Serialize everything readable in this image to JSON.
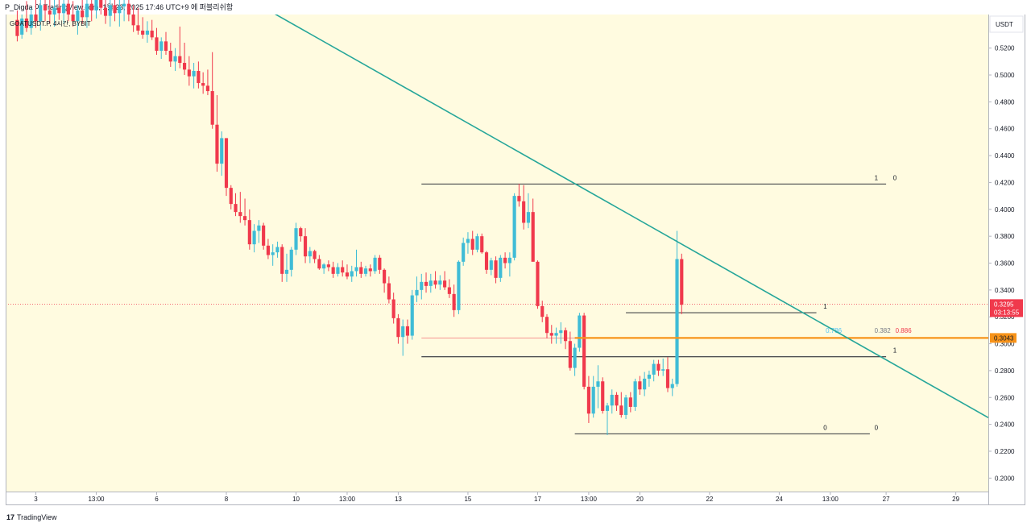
{
  "header": {
    "caption": "P_Digda 이 TradingView.com, 1월 23, 2025 17:46 UTC+9 에 퍼블리쉬함"
  },
  "footer": {
    "logo_mark": "17",
    "brand": "TradingView"
  },
  "chart_data": {
    "type": "candlestick",
    "symbol_line": "GOATUSDT.P, 4시간, BYBIT",
    "currency": "USDT",
    "y_ticks": [
      "0.2000",
      "0.2200",
      "0.2400",
      "0.2600",
      "0.2800",
      "0.3000",
      "0.3200",
      "0.3400",
      "0.3600",
      "0.3800",
      "0.4000",
      "0.4200",
      "0.4400",
      "0.4600",
      "0.4800",
      "0.5000",
      "0.5200"
    ],
    "ylim": [
      0.19,
      0.545
    ],
    "x_ticks": [
      {
        "label": "3",
        "t": 4
      },
      {
        "label": "13:00",
        "t": 17
      },
      {
        "label": "6",
        "t": 30
      },
      {
        "label": "8",
        "t": 45
      },
      {
        "label": "10",
        "t": 60
      },
      {
        "label": "13:00",
        "t": 71
      },
      {
        "label": "13",
        "t": 82
      },
      {
        "label": "15",
        "t": 97
      },
      {
        "label": "17",
        "t": 112
      },
      {
        "label": "13:00",
        "t": 123
      },
      {
        "label": "20",
        "t": 134
      },
      {
        "label": "22",
        "t": 149
      },
      {
        "label": "24",
        "t": 164
      },
      {
        "label": "13:00",
        "t": 175
      },
      {
        "label": "27",
        "t": 187
      },
      {
        "label": "29",
        "t": 202
      }
    ],
    "xlim": [
      -2.5,
      209
    ],
    "last_price": "0.3295",
    "countdown": "03:13:55",
    "marked_price": "0.3043",
    "colors": {
      "up": "#3fbcd6",
      "down": "#f0394c",
      "trendline": "#26a69a",
      "marked": "#f7931a",
      "price_tag": "#f0394c",
      "background": "#fffbe0"
    },
    "trendline": {
      "from": {
        "t": 48,
        "price": 0.56
      },
      "to": {
        "t": 209,
        "price": 0.245
      }
    },
    "horizontal_levels": [
      {
        "t0": 87,
        "t1": 187,
        "price": 0.4189,
        "labels": [
          {
            "text": "1",
            "t": 184.5,
            "color": "#131722"
          },
          {
            "text": "0",
            "t": 188.5,
            "color": "#131722"
          }
        ]
      },
      {
        "t0": 87,
        "t1": 187,
        "price": 0.2903,
        "labels": [
          {
            "text": "1",
            "t": 188.5,
            "color": "#131722"
          }
        ]
      },
      {
        "t0": 131,
        "t1": 172,
        "price": 0.3231,
        "labels": [
          {
            "text": "1",
            "t": 173.5,
            "color": "#131722"
          }
        ]
      },
      {
        "t0": 120,
        "t1": 183.5,
        "price": 0.233,
        "labels": [
          {
            "text": "0",
            "t": 173.5,
            "color": "#131722"
          },
          {
            "text": "0",
            "t": 184.5,
            "color": "#131722"
          }
        ]
      }
    ],
    "fib_labels": [
      {
        "text": "0.786",
        "t": 174,
        "price": 0.31,
        "color": "#4fc3f7"
      },
      {
        "text": "0.382",
        "t": 184.5,
        "price": 0.31,
        "color": "#787b86"
      },
      {
        "text": "0.886",
        "t": 189,
        "price": 0.31,
        "color": "#f0394c"
      }
    ],
    "marked_line": {
      "t0": 120,
      "price": 0.3043
    },
    "marked_thin_line": {
      "t0": 87,
      "t1": 130,
      "price": 0.3043
    },
    "candles": [
      [
        0.541,
        0.548,
        0.525,
        0.529
      ],
      [
        0.53,
        0.545,
        0.527,
        0.542
      ],
      [
        0.542,
        0.555,
        0.532,
        0.535
      ],
      [
        0.535,
        0.55,
        0.53,
        0.545
      ],
      [
        0.545,
        0.556,
        0.535,
        0.54
      ],
      [
        0.54,
        0.558,
        0.533,
        0.552
      ],
      [
        0.552,
        0.56,
        0.54,
        0.548
      ],
      [
        0.548,
        0.557,
        0.538,
        0.545
      ],
      [
        0.545,
        0.556,
        0.536,
        0.55
      ],
      [
        0.55,
        0.562,
        0.541,
        0.546
      ],
      [
        0.546,
        0.56,
        0.538,
        0.553
      ],
      [
        0.553,
        0.56,
        0.54,
        0.545
      ],
      [
        0.545,
        0.555,
        0.536,
        0.54
      ],
      [
        0.54,
        0.552,
        0.53,
        0.548
      ],
      [
        0.548,
        0.558,
        0.538,
        0.543
      ],
      [
        0.543,
        0.556,
        0.535,
        0.553
      ],
      [
        0.553,
        0.561,
        0.54,
        0.548
      ],
      [
        0.548,
        0.562,
        0.542,
        0.556
      ],
      [
        0.556,
        0.565,
        0.545,
        0.55
      ],
      [
        0.55,
        0.56,
        0.538,
        0.544
      ],
      [
        0.544,
        0.558,
        0.536,
        0.552
      ],
      [
        0.552,
        0.562,
        0.54,
        0.546
      ],
      [
        0.546,
        0.556,
        0.536,
        0.551
      ],
      [
        0.551,
        0.56,
        0.54,
        0.553
      ],
      [
        0.553,
        0.56,
        0.54,
        0.545
      ],
      [
        0.545,
        0.552,
        0.532,
        0.537
      ],
      [
        0.537,
        0.55,
        0.53,
        0.533
      ],
      [
        0.533,
        0.543,
        0.527,
        0.53
      ],
      [
        0.53,
        0.54,
        0.524,
        0.533
      ],
      [
        0.533,
        0.541,
        0.526,
        0.528
      ],
      [
        0.528,
        0.535,
        0.515,
        0.518
      ],
      [
        0.518,
        0.528,
        0.512,
        0.525
      ],
      [
        0.525,
        0.532,
        0.515,
        0.518
      ],
      [
        0.518,
        0.524,
        0.506,
        0.51
      ],
      [
        0.51,
        0.52,
        0.503,
        0.514
      ],
      [
        0.514,
        0.536,
        0.505,
        0.509
      ],
      [
        0.509,
        0.524,
        0.5,
        0.504
      ],
      [
        0.504,
        0.514,
        0.492,
        0.499
      ],
      [
        0.499,
        0.509,
        0.49,
        0.503
      ],
      [
        0.503,
        0.51,
        0.49,
        0.494
      ],
      [
        0.494,
        0.502,
        0.486,
        0.492
      ],
      [
        0.492,
        0.504,
        0.485,
        0.488
      ],
      [
        0.488,
        0.517,
        0.46,
        0.463
      ],
      [
        0.463,
        0.485,
        0.428,
        0.434
      ],
      [
        0.434,
        0.458,
        0.425,
        0.453
      ],
      [
        0.453,
        0.453,
        0.41,
        0.416
      ],
      [
        0.416,
        0.418,
        0.4,
        0.404
      ],
      [
        0.404,
        0.412,
        0.395,
        0.398
      ],
      [
        0.398,
        0.413,
        0.39,
        0.395
      ],
      [
        0.395,
        0.408,
        0.388,
        0.392
      ],
      [
        0.392,
        0.4,
        0.37,
        0.374
      ],
      [
        0.374,
        0.389,
        0.368,
        0.384
      ],
      [
        0.384,
        0.392,
        0.375,
        0.388
      ],
      [
        0.388,
        0.39,
        0.37,
        0.373
      ],
      [
        0.373,
        0.378,
        0.363,
        0.366
      ],
      [
        0.366,
        0.374,
        0.358,
        0.368
      ],
      [
        0.368,
        0.376,
        0.364,
        0.372
      ],
      [
        0.372,
        0.374,
        0.346,
        0.352
      ],
      [
        0.352,
        0.367,
        0.346,
        0.355
      ],
      [
        0.355,
        0.372,
        0.35,
        0.37
      ],
      [
        0.37,
        0.39,
        0.366,
        0.386
      ],
      [
        0.386,
        0.387,
        0.376,
        0.38
      ],
      [
        0.38,
        0.386,
        0.36,
        0.365
      ],
      [
        0.365,
        0.372,
        0.36,
        0.369
      ],
      [
        0.369,
        0.37,
        0.36,
        0.363
      ],
      [
        0.363,
        0.366,
        0.355,
        0.356
      ],
      [
        0.356,
        0.36,
        0.352,
        0.359
      ],
      [
        0.359,
        0.362,
        0.354,
        0.357
      ],
      [
        0.357,
        0.361,
        0.349,
        0.352
      ],
      [
        0.352,
        0.36,
        0.35,
        0.357
      ],
      [
        0.357,
        0.362,
        0.35,
        0.353
      ],
      [
        0.353,
        0.359,
        0.348,
        0.35
      ],
      [
        0.35,
        0.358,
        0.346,
        0.354
      ],
      [
        0.354,
        0.37,
        0.35,
        0.357
      ],
      [
        0.357,
        0.361,
        0.349,
        0.352
      ],
      [
        0.352,
        0.358,
        0.35,
        0.356
      ],
      [
        0.356,
        0.359,
        0.35,
        0.354
      ],
      [
        0.354,
        0.366,
        0.352,
        0.364
      ],
      [
        0.364,
        0.366,
        0.352,
        0.355
      ],
      [
        0.355,
        0.356,
        0.338,
        0.345
      ],
      [
        0.345,
        0.35,
        0.33,
        0.333
      ],
      [
        0.333,
        0.338,
        0.315,
        0.319
      ],
      [
        0.319,
        0.322,
        0.3,
        0.305
      ],
      [
        0.305,
        0.318,
        0.291,
        0.313
      ],
      [
        0.313,
        0.318,
        0.3,
        0.306
      ],
      [
        0.306,
        0.34,
        0.303,
        0.336
      ],
      [
        0.336,
        0.35,
        0.331,
        0.34
      ],
      [
        0.34,
        0.352,
        0.333,
        0.346
      ],
      [
        0.346,
        0.353,
        0.338,
        0.343
      ],
      [
        0.343,
        0.352,
        0.338,
        0.347
      ],
      [
        0.347,
        0.354,
        0.341,
        0.344
      ],
      [
        0.344,
        0.351,
        0.34,
        0.347
      ],
      [
        0.347,
        0.354,
        0.34,
        0.342
      ],
      [
        0.342,
        0.348,
        0.334,
        0.337
      ],
      [
        0.337,
        0.344,
        0.32,
        0.325
      ],
      [
        0.325,
        0.362,
        0.322,
        0.361
      ],
      [
        0.361,
        0.379,
        0.358,
        0.375
      ],
      [
        0.375,
        0.383,
        0.367,
        0.378
      ],
      [
        0.378,
        0.384,
        0.366,
        0.37
      ],
      [
        0.37,
        0.382,
        0.368,
        0.38
      ],
      [
        0.38,
        0.382,
        0.367,
        0.368
      ],
      [
        0.368,
        0.369,
        0.352,
        0.355
      ],
      [
        0.355,
        0.364,
        0.351,
        0.362
      ],
      [
        0.362,
        0.365,
        0.345,
        0.349
      ],
      [
        0.349,
        0.366,
        0.346,
        0.364
      ],
      [
        0.364,
        0.368,
        0.356,
        0.36
      ],
      [
        0.36,
        0.368,
        0.35,
        0.364
      ],
      [
        0.364,
        0.412,
        0.362,
        0.41
      ],
      [
        0.41,
        0.419,
        0.402,
        0.406
      ],
      [
        0.406,
        0.418,
        0.385,
        0.39
      ],
      [
        0.39,
        0.412,
        0.386,
        0.398
      ],
      [
        0.398,
        0.408,
        0.364,
        0.361
      ],
      [
        0.361,
        0.362,
        0.326,
        0.328
      ],
      [
        0.328,
        0.332,
        0.316,
        0.32
      ],
      [
        0.32,
        0.322,
        0.304,
        0.308
      ],
      [
        0.308,
        0.314,
        0.3,
        0.306
      ],
      [
        0.306,
        0.312,
        0.3,
        0.308
      ],
      [
        0.308,
        0.316,
        0.3,
        0.31
      ],
      [
        0.31,
        0.312,
        0.296,
        0.302
      ],
      [
        0.302,
        0.309,
        0.28,
        0.282
      ],
      [
        0.282,
        0.3,
        0.276,
        0.297
      ],
      [
        0.297,
        0.323,
        0.294,
        0.321
      ],
      [
        0.321,
        0.323,
        0.266,
        0.268
      ],
      [
        0.268,
        0.276,
        0.241,
        0.248
      ],
      [
        0.248,
        0.276,
        0.245,
        0.268
      ],
      [
        0.268,
        0.284,
        0.252,
        0.272
      ],
      [
        0.272,
        0.275,
        0.248,
        0.25
      ],
      [
        0.25,
        0.256,
        0.232,
        0.254
      ],
      [
        0.254,
        0.266,
        0.248,
        0.262
      ],
      [
        0.262,
        0.264,
        0.25,
        0.254
      ],
      [
        0.254,
        0.264,
        0.245,
        0.247
      ],
      [
        0.247,
        0.262,
        0.244,
        0.26
      ],
      [
        0.26,
        0.264,
        0.249,
        0.253
      ],
      [
        0.253,
        0.274,
        0.25,
        0.272
      ],
      [
        0.272,
        0.276,
        0.262,
        0.266
      ],
      [
        0.266,
        0.279,
        0.261,
        0.274
      ],
      [
        0.274,
        0.28,
        0.268,
        0.277
      ],
      [
        0.277,
        0.288,
        0.272,
        0.285
      ],
      [
        0.285,
        0.288,
        0.276,
        0.28
      ],
      [
        0.28,
        0.289,
        0.276,
        0.281
      ],
      [
        0.281,
        0.29,
        0.264,
        0.267
      ],
      [
        0.267,
        0.274,
        0.261,
        0.27
      ],
      [
        0.27,
        0.384,
        0.268,
        0.363
      ],
      [
        0.363,
        0.367,
        0.322,
        0.329
      ]
    ]
  }
}
